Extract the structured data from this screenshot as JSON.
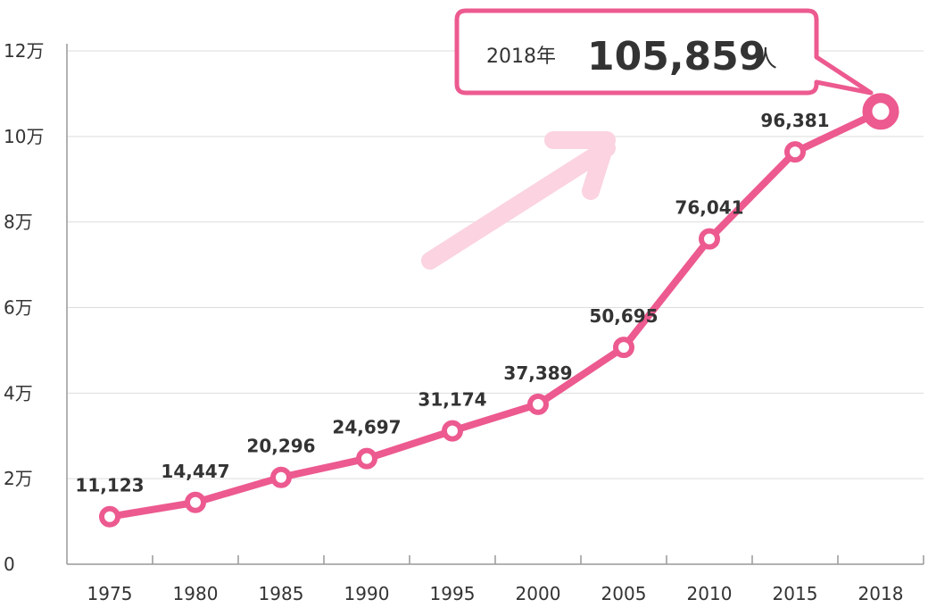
{
  "chart_data": {
    "type": "line",
    "x": [
      "1975",
      "1980",
      "1985",
      "1990",
      "1995",
      "2000",
      "2005",
      "2010",
      "2015",
      "2018"
    ],
    "values": [
      11123,
      14447,
      20296,
      24697,
      31174,
      37389,
      50695,
      76041,
      96381,
      105859
    ],
    "data_labels": [
      "11,123",
      "14,447",
      "20,296",
      "24,697",
      "31,174",
      "37,389",
      "50,695",
      "76,041",
      "96,381",
      ""
    ],
    "y_ticks": [
      0,
      20000,
      40000,
      60000,
      80000,
      100000,
      120000
    ],
    "y_tick_labels": [
      "0",
      "2万",
      "4万",
      "6万",
      "8万",
      "10万",
      "12万"
    ],
    "ylim": [
      0,
      120000
    ],
    "grid": true,
    "title": "",
    "xlabel": "",
    "ylabel": "",
    "colors": {
      "line": "#ec5a8f",
      "arrow": "#fbd3e1",
      "grid": "#dddddd",
      "axis": "#999999"
    },
    "callout": {
      "year": "2018年",
      "value": "105,859",
      "unit": "人"
    }
  }
}
